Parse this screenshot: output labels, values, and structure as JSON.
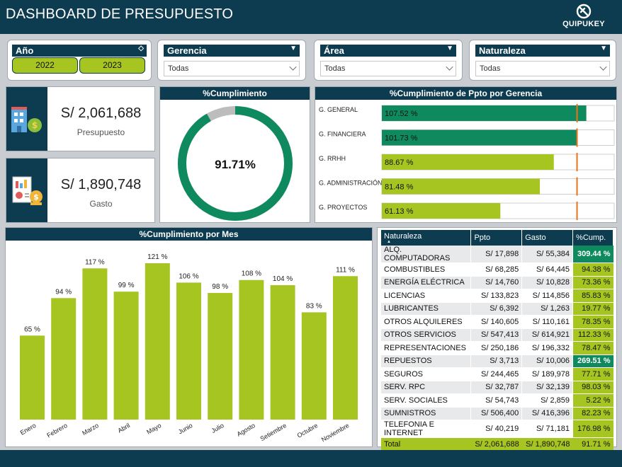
{
  "header": {
    "title": "DASHBOARD DE PRESUPUESTO",
    "brand": "QUIPUKEY"
  },
  "filters": {
    "year": {
      "label": "Año",
      "options": [
        "2022",
        "2023"
      ]
    },
    "gerencia": {
      "label": "Gerencia",
      "value": "Todas"
    },
    "area": {
      "label": "Área",
      "value": "Todas"
    },
    "naturaleza": {
      "label": "Naturaleza",
      "value": "Todas"
    }
  },
  "kpis": {
    "presupuesto": {
      "value": "S/ 2,061,688",
      "label": "Presupuesto"
    },
    "gasto": {
      "value": "S/ 1,890,748",
      "label": "Gasto"
    }
  },
  "gauge": {
    "title": "%Cumplimiento",
    "value_label": "91.71%",
    "value": 0.9171
  },
  "gerencia_chart": {
    "title": "%Cumplimiento de Ppto por Gerencia",
    "target_fraction": 0.84,
    "rows": [
      {
        "name": "G. GENERAL",
        "label": "107.52 %",
        "value": 107.52,
        "fill": 0.88,
        "color": "#0f8a5f"
      },
      {
        "name": "G. FINANCIERA",
        "label": "101.73 %",
        "value": 101.73,
        "fill": 0.84,
        "color": "#0f8a5f"
      },
      {
        "name": "G. RRHH",
        "label": "88.67 %",
        "value": 88.67,
        "fill": 0.74,
        "color": "#a7c520"
      },
      {
        "name": "G. ADMINISTRACIÓN",
        "label": "81.48 %",
        "value": 81.48,
        "fill": 0.68,
        "color": "#a7c520"
      },
      {
        "name": "G. PROYECTOS",
        "label": "61.13 %",
        "value": 61.13,
        "fill": 0.51,
        "color": "#a7c520"
      }
    ]
  },
  "chart_data": {
    "type": "bar",
    "title": "%Cumplimiento por Mes",
    "categories": [
      "Enero",
      "Febrero",
      "Marzo",
      "Abril",
      "Mayo",
      "Junio",
      "Julio",
      "Agosto",
      "Setiembre",
      "Octubre",
      "Noviembre"
    ],
    "values": [
      65,
      94,
      117,
      99,
      121,
      106,
      98,
      108,
      104,
      83,
      111
    ],
    "value_labels": [
      "65 %",
      "94 %",
      "117 %",
      "99 %",
      "121 %",
      "106 %",
      "98 %",
      "108 %",
      "104 %",
      "83 %",
      "111 %"
    ],
    "ylim": [
      0,
      121
    ],
    "color": "#a7c520"
  },
  "table": {
    "headers": [
      "Naturaleza",
      "Ppto",
      "Gasto",
      "%Cump."
    ],
    "rows": [
      [
        "ALQ. COMPUTADORAS",
        "S/ 17,898",
        "S/ 55,384",
        "309.44 %"
      ],
      [
        "COMBUSTIBLES",
        "S/ 68,285",
        "S/ 64,445",
        "94.38 %"
      ],
      [
        "ENERGÍA ELÉCTRICA",
        "S/ 14,760",
        "S/ 10,828",
        "73.36 %"
      ],
      [
        "LICENCIAS",
        "S/ 133,823",
        "S/ 114,856",
        "85.83 %"
      ],
      [
        "LUBRICANTES",
        "S/ 6,392",
        "S/ 1,263",
        "19.77 %"
      ],
      [
        "OTROS ALQUILERES",
        "S/ 140,605",
        "S/ 110,161",
        "78.35 %"
      ],
      [
        "OTROS SERVICIOS",
        "S/ 547,413",
        "S/ 614,921",
        "112.33 %"
      ],
      [
        "REPRESENTACIONES",
        "S/ 250,186",
        "S/ 196,332",
        "78.47 %"
      ],
      [
        "REPUESTOS",
        "S/ 3,713",
        "S/ 10,006",
        "269.51 %"
      ],
      [
        "SEGUROS",
        "S/ 244,465",
        "S/ 189,978",
        "77.71 %"
      ],
      [
        "SERV. RPC",
        "S/ 32,787",
        "S/ 32,139",
        "98.03 %"
      ],
      [
        "SERV. SOCIALES",
        "S/ 54,743",
        "S/ 2,859",
        "5.22 %"
      ],
      [
        "SUMNISTROS",
        "S/ 506,400",
        "S/ 416,396",
        "82.23 %"
      ],
      [
        "TELEFONIA E INTERNET",
        "S/ 40,219",
        "S/ 71,181",
        "176.98 %"
      ]
    ],
    "highlight_rows": [
      0,
      8
    ],
    "total": [
      "Total",
      "S/ 2,061,688",
      "S/ 1,890,748",
      "91.71 %"
    ]
  },
  "colors": {
    "navy": "#0d3b4f",
    "lime": "#a7c520",
    "green": "#0f8a5f",
    "target": "#e8731a"
  }
}
